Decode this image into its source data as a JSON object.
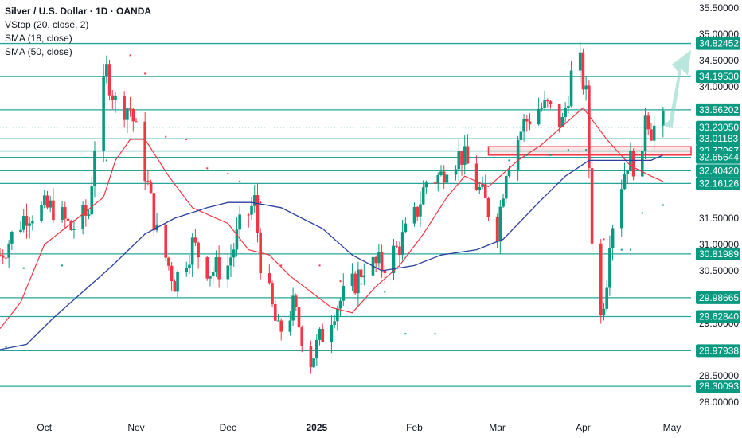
{
  "legend": {
    "title": "Silver / U.S. Dollar · 1D · OANDA",
    "indicators": [
      "VStop (20, close, 2)",
      "SMA (18, close)",
      "SMA (50, close)"
    ]
  },
  "colors": {
    "up": "#089981",
    "down": "#f23645",
    "sma18": "#f23645",
    "sma50": "#2a3f9f",
    "level": "#26a69a",
    "label_bg": "#089981",
    "zone": "#f23645",
    "arrow": "#7fd3c3"
  },
  "chart_data": {
    "type": "candlestick",
    "y_axis": {
      "ticks": [
        "35.50000",
        "35.00000",
        "34.50000",
        "34.00000",
        "31.50000",
        "31.00000",
        "30.50000",
        "29.50000",
        "28.50000",
        "28.00000"
      ],
      "range": [
        27.9,
        35.55
      ]
    },
    "x_axis": {
      "ticks": [
        "Oct",
        "Nov",
        "Dec",
        "2025",
        "Feb",
        "Mar",
        "Apr",
        "May"
      ],
      "bold": [
        "2025"
      ]
    },
    "levels": [
      "34.82452",
      "34.19530",
      "33.56202",
      "33.01183",
      "32.77967",
      "32.65644",
      "32.40420",
      "32.16126",
      "30.81989",
      "29.98665",
      "29.62840",
      "28.97938",
      "28.30093"
    ],
    "current_price": "33.23050",
    "zone": {
      "from": 32.7,
      "to": 32.86,
      "start": "2025-02-28"
    },
    "series_points": {
      "close": [
        [
          "2024-09-16",
          30.8
        ],
        [
          "2024-09-25",
          31.6
        ],
        [
          "2024-10-04",
          31.7
        ],
        [
          "2024-10-10",
          31.3
        ],
        [
          "2024-10-16",
          31.6
        ],
        [
          "2024-10-18",
          32.9
        ],
        [
          "2024-10-22",
          34.3
        ],
        [
          "2024-10-25",
          33.7
        ],
        [
          "2024-10-30",
          33.6
        ],
        [
          "2024-11-04",
          32.4
        ],
        [
          "2024-11-08",
          31.2
        ],
        [
          "2024-11-14",
          30.3
        ],
        [
          "2024-11-20",
          31.0
        ],
        [
          "2024-11-26",
          30.5
        ],
        [
          "2024-12-02",
          30.6
        ],
        [
          "2024-12-06",
          31.3
        ],
        [
          "2024-12-11",
          31.8
        ],
        [
          "2024-12-13",
          30.7
        ],
        [
          "2024-12-19",
          29.3
        ],
        [
          "2024-12-24",
          29.8
        ],
        [
          "2024-12-30",
          28.8
        ],
        [
          "2025-01-07",
          29.8
        ],
        [
          "2025-01-13",
          30.2
        ],
        [
          "2025-01-17",
          30.6
        ],
        [
          "2025-01-23",
          30.6
        ],
        [
          "2025-01-28",
          30.9
        ],
        [
          "2025-02-03",
          31.5
        ],
        [
          "2025-02-07",
          32.2
        ],
        [
          "2025-02-12",
          32.3
        ],
        [
          "2025-02-14",
          32.6
        ],
        [
          "2025-02-19",
          32.7
        ],
        [
          "2025-02-21",
          32.5
        ],
        [
          "2025-02-26",
          31.9
        ],
        [
          "2025-03-03",
          31.3
        ],
        [
          "2025-03-06",
          32.5
        ],
        [
          "2025-03-12",
          33.3
        ],
        [
          "2025-03-17",
          33.6
        ],
        [
          "2025-03-20",
          33.6
        ],
        [
          "2025-03-25",
          33.3
        ],
        [
          "2025-03-28",
          34.2
        ],
        [
          "2025-03-31",
          34.4
        ],
        [
          "2025-04-02",
          33.8
        ],
        [
          "2025-04-04",
          31.2
        ],
        [
          "2025-04-07",
          29.6
        ],
        [
          "2025-04-09",
          30.4
        ],
        [
          "2025-04-10",
          31.2
        ],
        [
          "2025-04-14",
          32.2
        ],
        [
          "2025-04-16",
          32.6
        ],
        [
          "2025-04-21",
          32.5
        ],
        [
          "2025-04-22",
          33.6
        ],
        [
          "2025-04-24",
          33.2
        ],
        [
          "2025-04-28",
          33.3
        ]
      ],
      "sma18": [
        [
          "2024-09-16",
          29.4
        ],
        [
          "2024-09-23",
          29.9
        ],
        [
          "2024-10-01",
          31.0
        ],
        [
          "2024-10-10",
          31.4
        ],
        [
          "2024-10-21",
          31.9
        ],
        [
          "2024-10-25",
          32.6
        ],
        [
          "2024-10-30",
          33.0
        ],
        [
          "2024-11-04",
          33.0
        ],
        [
          "2024-11-12",
          32.3
        ],
        [
          "2024-11-20",
          31.7
        ],
        [
          "2024-12-02",
          31.4
        ],
        [
          "2024-12-09",
          30.9
        ],
        [
          "2024-12-16",
          30.8
        ],
        [
          "2024-12-23",
          30.4
        ],
        [
          "2025-01-06",
          29.8
        ],
        [
          "2025-01-13",
          29.7
        ],
        [
          "2025-01-21",
          30.2
        ],
        [
          "2025-01-29",
          30.6
        ],
        [
          "2025-02-06",
          31.2
        ],
        [
          "2025-02-14",
          31.9
        ],
        [
          "2025-02-20",
          32.3
        ],
        [
          "2025-02-28",
          32.1
        ],
        [
          "2025-03-10",
          32.6
        ],
        [
          "2025-03-18",
          32.9
        ],
        [
          "2025-03-24",
          33.2
        ],
        [
          "2025-04-01",
          33.6
        ],
        [
          "2025-04-09",
          33.0
        ],
        [
          "2025-04-17",
          32.5
        ],
        [
          "2025-04-24",
          32.3
        ],
        [
          "2025-04-28",
          32.2
        ]
      ],
      "sma50": [
        [
          "2024-09-16",
          29.0
        ],
        [
          "2024-09-25",
          29.1
        ],
        [
          "2024-10-04",
          29.6
        ],
        [
          "2024-10-14",
          30.1
        ],
        [
          "2024-10-24",
          30.6
        ],
        [
          "2024-11-04",
          31.2
        ],
        [
          "2024-11-14",
          31.5
        ],
        [
          "2024-11-25",
          31.7
        ],
        [
          "2024-12-02",
          31.8
        ],
        [
          "2024-12-10",
          31.8
        ],
        [
          "2024-12-20",
          31.7
        ],
        [
          "2025-01-03",
          31.3
        ],
        [
          "2025-01-13",
          30.8
        ],
        [
          "2025-01-23",
          30.5
        ],
        [
          "2025-02-03",
          30.6
        ],
        [
          "2025-02-12",
          30.8
        ],
        [
          "2025-02-24",
          30.9
        ],
        [
          "2025-03-05",
          31.1
        ],
        [
          "2025-03-17",
          31.8
        ],
        [
          "2025-03-26",
          32.3
        ],
        [
          "2025-04-03",
          32.6
        ],
        [
          "2025-04-14",
          32.6
        ],
        [
          "2025-04-24",
          32.6
        ],
        [
          "2025-04-28",
          32.7
        ]
      ],
      "vstop": [
        [
          "2024-09-18",
          29.05
        ],
        [
          "2024-09-24",
          30.55
        ],
        [
          "2024-10-07",
          30.6
        ],
        [
          "2024-10-22",
          32.6
        ],
        [
          "2024-10-30",
          34.6
        ],
        [
          "2024-11-04",
          34.25
        ],
        [
          "2024-11-11",
          33.05
        ],
        [
          "2024-11-18",
          33.0
        ],
        [
          "2024-11-25",
          32.45
        ],
        [
          "2024-12-02",
          32.35
        ],
        [
          "2024-12-06",
          32.2
        ],
        [
          "2024-12-13",
          31.8
        ],
        [
          "2024-12-20",
          30.6
        ],
        [
          "2025-01-02",
          30.6
        ],
        [
          "2025-01-09",
          30.3
        ],
        [
          "2025-01-16",
          30.25
        ],
        [
          "2025-01-24",
          30.1
        ],
        [
          "2025-01-31",
          29.3
        ],
        [
          "2025-02-10",
          29.3
        ],
        [
          "2025-02-27",
          32.65
        ],
        [
          "2025-03-07",
          32.6
        ],
        [
          "2025-03-13",
          32.7
        ],
        [
          "2025-03-21",
          32.7
        ],
        [
          "2025-03-27",
          32.8
        ],
        [
          "2025-04-02",
          32.8
        ],
        [
          "2025-04-08",
          31.1
        ],
        [
          "2025-04-14",
          30.9
        ],
        [
          "2025-04-17",
          30.9
        ],
        [
          "2025-04-21",
          31.6
        ],
        [
          "2025-04-28",
          31.75
        ]
      ]
    }
  }
}
